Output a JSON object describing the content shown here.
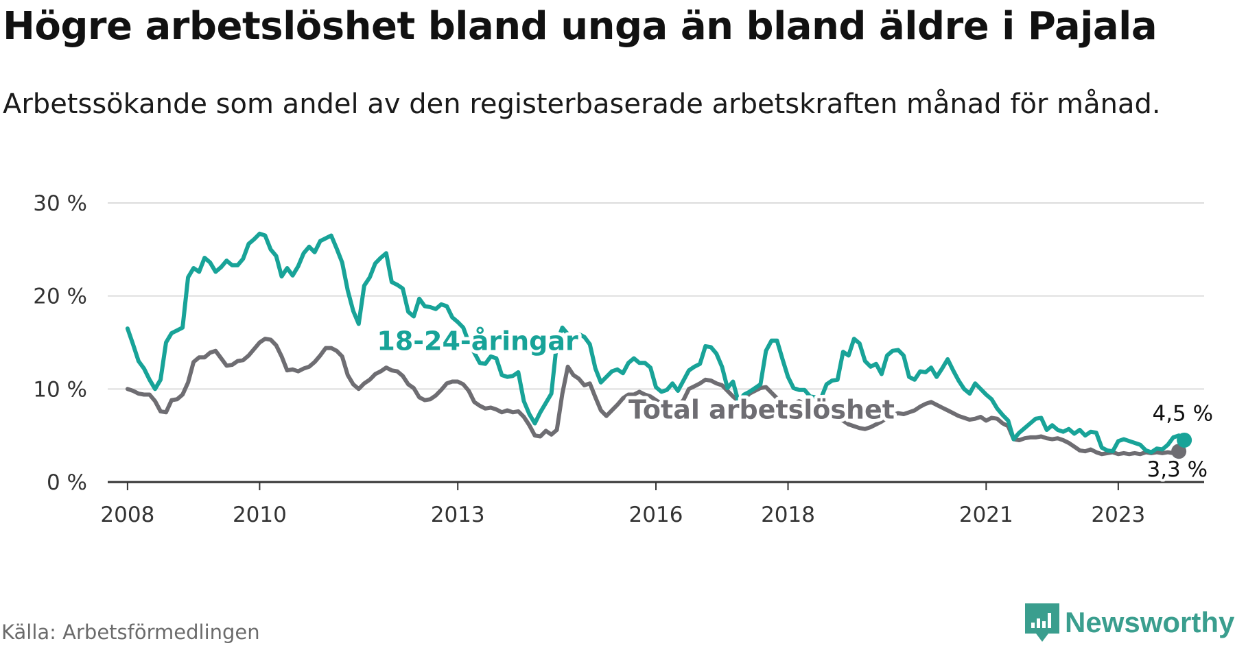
{
  "title": "Högre arbetslöshet bland unga än bland äldre i Pajala",
  "subtitle": "Arbetssökande som andel av den registerbaserade arbetskraften månad för månad.",
  "source": "Källa: Arbetsförmedlingen",
  "brand": "Newsworthy",
  "colors": {
    "young": "#18a398",
    "total": "#6e6d72",
    "brand": "#3a9e8e",
    "grid": "#dcdcdc",
    "axis": "#333333"
  },
  "chart_data": {
    "type": "line",
    "title": "Högre arbetslöshet bland unga än bland äldre i Pajala",
    "xlabel": "",
    "ylabel": "",
    "x_start": 2008.0,
    "x_step_months": 1,
    "xlim": [
      2007.7,
      2024.3
    ],
    "ylim": [
      0,
      30
    ],
    "yticks": [
      0,
      10,
      20,
      30
    ],
    "ytick_labels": [
      "0 %",
      "10 %",
      "20 %",
      "30 %"
    ],
    "xticks": [
      2008,
      2010,
      2013,
      2016,
      2018,
      2021,
      2023
    ],
    "xtick_labels": [
      "2008",
      "2010",
      "2013",
      "2016",
      "2018",
      "2021",
      "2023"
    ],
    "grid": true,
    "series": [
      {
        "name": "18-24-åringar",
        "label": "18-24-åringar",
        "end_label": "4,5 %",
        "values": [
          16.5,
          14.8,
          13.0,
          12.2,
          11.0,
          10.0,
          11.0,
          15.0,
          16.0,
          16.3,
          16.6,
          22.0,
          23.0,
          22.6,
          24.1,
          23.6,
          22.6,
          23.1,
          23.8,
          23.3,
          23.3,
          24.0,
          25.6,
          26.1,
          26.7,
          26.5,
          25.0,
          24.3,
          22.1,
          23.0,
          22.2,
          23.2,
          24.6,
          25.3,
          24.7,
          25.9,
          26.2,
          26.5,
          25.1,
          23.6,
          20.6,
          18.4,
          17.0,
          21.1,
          22.0,
          23.5,
          24.1,
          24.6,
          21.5,
          21.2,
          20.8,
          18.3,
          17.8,
          19.7,
          18.9,
          18.8,
          18.6,
          19.1,
          18.9,
          17.7,
          17.2,
          16.6,
          15.0,
          13.9,
          12.8,
          12.7,
          13.5,
          13.3,
          11.5,
          11.3,
          11.4,
          11.8,
          8.7,
          7.3,
          6.3,
          7.5,
          8.5,
          9.5,
          15.0,
          16.6,
          15.9,
          15.5,
          15.9,
          15.6,
          14.8,
          12.2,
          10.7,
          11.3,
          11.9,
          12.1,
          11.7,
          12.8,
          13.3,
          12.8,
          12.8,
          12.3,
          10.2,
          9.7,
          9.9,
          10.6,
          9.8,
          10.9,
          12.0,
          12.4,
          12.7,
          14.6,
          14.5,
          13.8,
          12.4,
          10.1,
          10.8,
          8.6,
          9.4,
          9.7,
          10.1,
          10.5,
          14.1,
          15.2,
          15.2,
          13.2,
          11.3,
          10.1,
          9.9,
          9.9,
          9.2,
          9.1,
          9.0,
          10.5,
          10.9,
          11.0,
          14.0,
          13.6,
          15.4,
          14.9,
          13.0,
          12.4,
          12.7,
          11.6,
          13.6,
          14.1,
          14.2,
          13.6,
          11.3,
          11.0,
          11.9,
          11.8,
          12.3,
          11.3,
          12.2,
          13.2,
          12.0,
          10.9,
          10.0,
          9.5,
          10.6,
          10.0,
          9.4,
          8.9,
          7.9,
          7.2,
          6.6,
          4.6,
          5.3,
          5.8,
          6.3,
          6.8,
          6.9,
          5.6,
          6.1,
          5.6,
          5.4,
          5.7,
          5.2,
          5.6,
          5.0,
          5.4,
          5.3,
          3.7,
          3.4,
          3.3,
          4.4,
          4.6,
          4.4,
          4.2,
          4.0,
          3.4,
          3.2,
          3.6,
          3.5,
          4.0,
          4.8,
          5.0,
          4.5
        ]
      },
      {
        "name": "Total arbetslöshet",
        "label": "Total arbetslöshet",
        "end_label": "3,3 %",
        "values": [
          10.0,
          9.8,
          9.5,
          9.4,
          9.4,
          8.7,
          7.6,
          7.5,
          8.8,
          8.9,
          9.4,
          10.7,
          12.9,
          13.4,
          13.4,
          13.9,
          14.1,
          13.3,
          12.5,
          12.6,
          13.0,
          13.1,
          13.6,
          14.3,
          15.0,
          15.4,
          15.3,
          14.7,
          13.5,
          12.0,
          12.1,
          11.9,
          12.2,
          12.4,
          12.9,
          13.6,
          14.4,
          14.4,
          14.1,
          13.5,
          11.5,
          10.5,
          10.0,
          10.6,
          11.0,
          11.6,
          11.9,
          12.3,
          12.0,
          11.9,
          11.4,
          10.5,
          10.1,
          9.1,
          8.8,
          8.9,
          9.3,
          9.9,
          10.6,
          10.8,
          10.8,
          10.5,
          9.8,
          8.6,
          8.2,
          7.9,
          8.0,
          7.8,
          7.5,
          7.7,
          7.5,
          7.6,
          7.0,
          6.1,
          5.0,
          4.9,
          5.5,
          5.1,
          5.6,
          9.5,
          12.4,
          11.5,
          11.1,
          10.4,
          10.6,
          9.1,
          7.7,
          7.1,
          7.7,
          8.3,
          9.0,
          9.4,
          9.4,
          9.7,
          9.4,
          9.2,
          8.8,
          8.4,
          7.9,
          8.1,
          8.2,
          8.8,
          10.0,
          10.3,
          10.6,
          11.0,
          10.9,
          10.6,
          10.4,
          9.8,
          9.2,
          8.7,
          8.9,
          9.5,
          9.8,
          10.1,
          10.2,
          9.6,
          9.0,
          8.5,
          8.3,
          8.4,
          8.7,
          8.3,
          8.0,
          7.6,
          7.3,
          7.0,
          7.0,
          6.8,
          6.6,
          6.2,
          6.0,
          5.8,
          5.7,
          5.9,
          6.2,
          6.5,
          6.9,
          7.2,
          7.4,
          7.3,
          7.5,
          7.7,
          8.1,
          8.4,
          8.6,
          8.3,
          8.0,
          7.7,
          7.4,
          7.1,
          6.9,
          6.7,
          6.8,
          7.0,
          6.6,
          6.9,
          6.8,
          6.3,
          6.0,
          4.6,
          4.5,
          4.7,
          4.8,
          4.8,
          4.9,
          4.7,
          4.6,
          4.7,
          4.5,
          4.2,
          3.8,
          3.4,
          3.3,
          3.5,
          3.2,
          3.0,
          3.1,
          3.2,
          3.0,
          3.1,
          3.0,
          3.1,
          3.0,
          3.2,
          3.1,
          3.2,
          3.1,
          3.2,
          3.1,
          3.3
        ]
      }
    ]
  }
}
